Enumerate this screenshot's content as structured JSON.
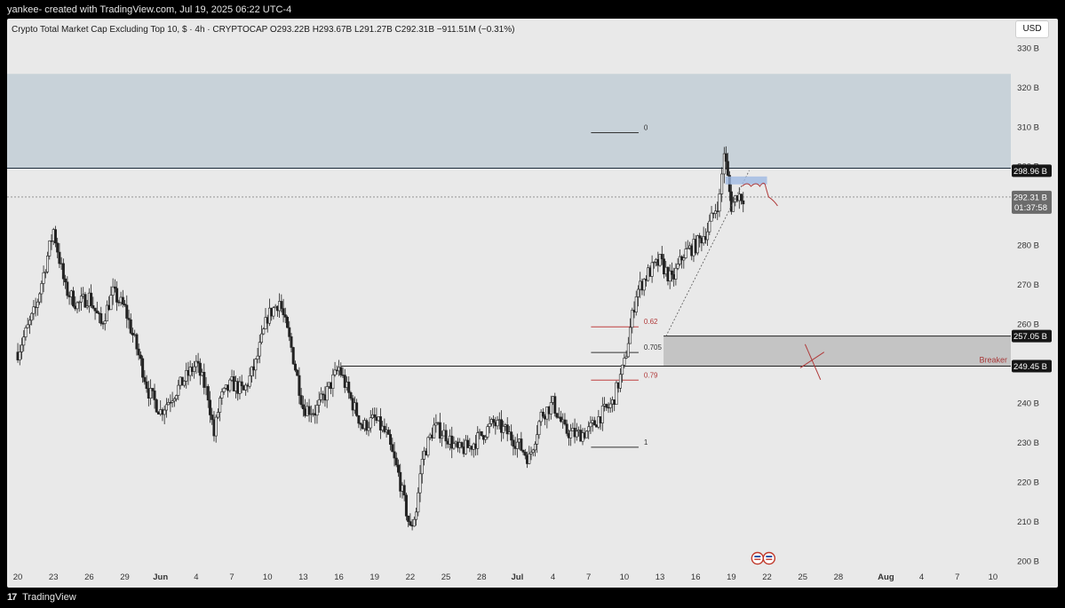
{
  "header": {
    "attribution": "yankee- created with TradingView.com, Jul 19, 2025 06:22 UTC-4"
  },
  "chart_legend": {
    "text": "Crypto Total Market Cap Excluding Top 10, $ · 4h · CRYPTOCAP  O293.22B  H293.67B  L291.27B  C292.31B  −911.51M (−0.31%)"
  },
  "currency_button": {
    "label": "USD"
  },
  "footer": {
    "brand": "TradingView",
    "logo_glyph": "17"
  },
  "chart_data": {
    "type": "candlestick",
    "symbol": "Crypto Total Market Cap Excluding Top 10",
    "interval": "4h",
    "ohlc": {
      "open": "293.22B",
      "high": "293.67B",
      "low": "291.27B",
      "close": "292.31B",
      "change": "−911.51M (−0.31%)"
    },
    "y_ticks": [
      330,
      320,
      310,
      300,
      290,
      280,
      270,
      260,
      250,
      240,
      230,
      220,
      210,
      200
    ],
    "y_tick_suffix": "B",
    "y_range": [
      198.5,
      337.5
    ],
    "x_ticks": [
      {
        "label": "20",
        "day": 0
      },
      {
        "label": "23",
        "day": 3
      },
      {
        "label": "26",
        "day": 6
      },
      {
        "label": "29",
        "day": 9
      },
      {
        "label": "Jun",
        "day": 12,
        "bold": true
      },
      {
        "label": "4",
        "day": 15
      },
      {
        "label": "7",
        "day": 18
      },
      {
        "label": "10",
        "day": 21
      },
      {
        "label": "13",
        "day": 24
      },
      {
        "label": "16",
        "day": 27
      },
      {
        "label": "19",
        "day": 30
      },
      {
        "label": "22",
        "day": 33
      },
      {
        "label": "25",
        "day": 36
      },
      {
        "label": "28",
        "day": 39
      },
      {
        "label": "Jul",
        "day": 42,
        "bold": true
      },
      {
        "label": "4",
        "day": 45
      },
      {
        "label": "7",
        "day": 48
      },
      {
        "label": "10",
        "day": 51
      },
      {
        "label": "13",
        "day": 54
      },
      {
        "label": "16",
        "day": 57
      },
      {
        "label": "19",
        "day": 60
      },
      {
        "label": "22",
        "day": 63
      },
      {
        "label": "25",
        "day": 66
      },
      {
        "label": "28",
        "day": 69
      },
      {
        "label": "Aug",
        "day": 73,
        "bold": true
      },
      {
        "label": "4",
        "day": 76
      },
      {
        "label": "7",
        "day": 79
      },
      {
        "label": "10",
        "day": 82
      }
    ],
    "x_range_days": [
      -0.9,
      83.5
    ],
    "price_path": [
      [
        0,
        253
      ],
      [
        1.5,
        264
      ],
      [
        3,
        284
      ],
      [
        4,
        269
      ],
      [
        5,
        265
      ],
      [
        6,
        267
      ],
      [
        7,
        260
      ],
      [
        8,
        268
      ],
      [
        9,
        264
      ],
      [
        10,
        254
      ],
      [
        11,
        243
      ],
      [
        12,
        238
      ],
      [
        13,
        242
      ],
      [
        14,
        246
      ],
      [
        15,
        250
      ],
      [
        16,
        242
      ],
      [
        16.5,
        232
      ],
      [
        17,
        241
      ],
      [
        18,
        245
      ],
      [
        19,
        243
      ],
      [
        20,
        250
      ],
      [
        21,
        262
      ],
      [
        22,
        266
      ],
      [
        23,
        254
      ],
      [
        24,
        239
      ],
      [
        25,
        238
      ],
      [
        26,
        243
      ],
      [
        27,
        249
      ],
      [
        28,
        241
      ],
      [
        29,
        234
      ],
      [
        30,
        236
      ],
      [
        31,
        232
      ],
      [
        32,
        222
      ],
      [
        33,
        208
      ],
      [
        33.5,
        213
      ],
      [
        34,
        226
      ],
      [
        35,
        234
      ],
      [
        36,
        232
      ],
      [
        37,
        228
      ],
      [
        38,
        229
      ],
      [
        39,
        232
      ],
      [
        40,
        235
      ],
      [
        41,
        233
      ],
      [
        42,
        230
      ],
      [
        43,
        226
      ],
      [
        44,
        237
      ],
      [
        45,
        240
      ],
      [
        46,
        233
      ],
      [
        47,
        232
      ],
      [
        48,
        233
      ],
      [
        49,
        237
      ],
      [
        50,
        240
      ],
      [
        51,
        250
      ],
      [
        52,
        268
      ],
      [
        53,
        273
      ],
      [
        54,
        276
      ],
      [
        55,
        271
      ],
      [
        56,
        278
      ],
      [
        57,
        280
      ],
      [
        58,
        284
      ],
      [
        59,
        292
      ],
      [
        59.4,
        304
      ],
      [
        60,
        290
      ],
      [
        60.5,
        293
      ],
      [
        61,
        292.3
      ]
    ],
    "zones": [
      {
        "type": "supply",
        "from": 299.6,
        "to": 323.5,
        "color": "#c8d2d9"
      },
      {
        "type": "breaker",
        "from": 249.45,
        "to": 257.05,
        "color": "#c4c4c4",
        "label": "Breaker"
      }
    ],
    "price_labels": [
      {
        "value": 298.96,
        "text": "298.96 B"
      },
      {
        "value": 257.05,
        "text": "257.05 B"
      },
      {
        "value": 249.45,
        "text": "249.45 B"
      }
    ],
    "current_price": {
      "value": 292.31,
      "text": "292.31 B",
      "countdown": "01:37:58"
    },
    "fib_levels": [
      {
        "value": 308.6,
        "label": "0"
      },
      {
        "value": 259.4,
        "label": "0.62",
        "red": true
      },
      {
        "value": 252.9,
        "label": "0.705"
      },
      {
        "value": 245.9,
        "label": "0.79",
        "red": true
      },
      {
        "value": 228.9,
        "label": "1"
      }
    ],
    "upper_legend_line": {
      "value": 299.6
    },
    "event_icons": 2
  }
}
